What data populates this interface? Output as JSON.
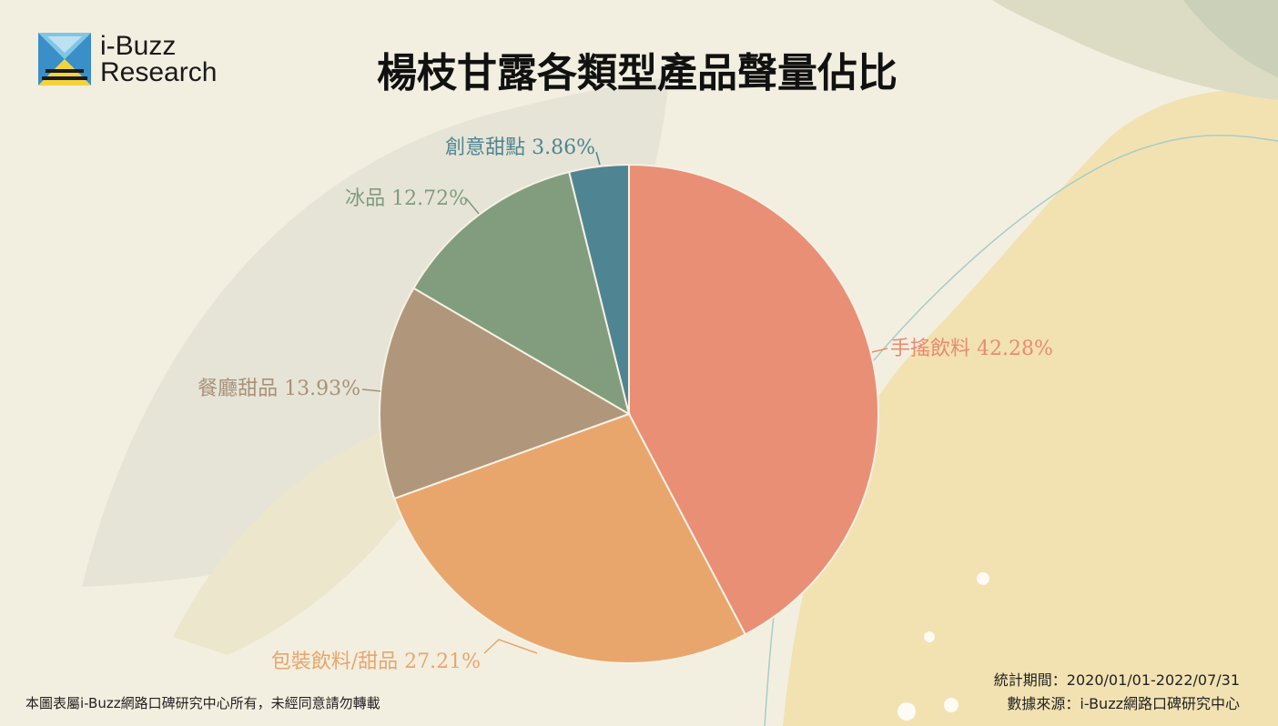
{
  "brand": {
    "line1": "i-Buzz",
    "line2": "Research"
  },
  "title": "楊枝甘露各類型產品聲量佔比",
  "footer": {
    "copyright": "本圖表屬i-Buzz網路口碑研究中心所有，未經同意請勿轉載",
    "period_label": "統計期間：",
    "period_value": "2020/01/01-2022/07/31",
    "source_label": "數據來源：",
    "source_value": "i-Buzz網路口碑研究中心"
  },
  "chart_data": {
    "type": "pie",
    "title": "楊枝甘露各類型產品聲量佔比",
    "unit": "%",
    "slices": [
      {
        "label": "手搖飲料",
        "value": 42.28,
        "display": "42.28%",
        "color": "#e98f75"
      },
      {
        "label": "包裝飲料/甜品",
        "value": 27.21,
        "display": "27.21%",
        "color": "#e8a66d"
      },
      {
        "label": "餐廳甜品",
        "value": 13.93,
        "display": "13.93%",
        "color": "#b0977b"
      },
      {
        "label": "冰品",
        "value": 12.72,
        "display": "12.72%",
        "color": "#819d7e"
      },
      {
        "label": "創意甜點",
        "value": 3.86,
        "display": "3.86%",
        "color": "#4f8592"
      }
    ],
    "label_colors": [
      "#e98a72",
      "#e8a66d",
      "#a8917a",
      "#809b7e",
      "#4d8592"
    ],
    "start": "12 o'clock",
    "direction": "clockwise",
    "legend": "none"
  }
}
